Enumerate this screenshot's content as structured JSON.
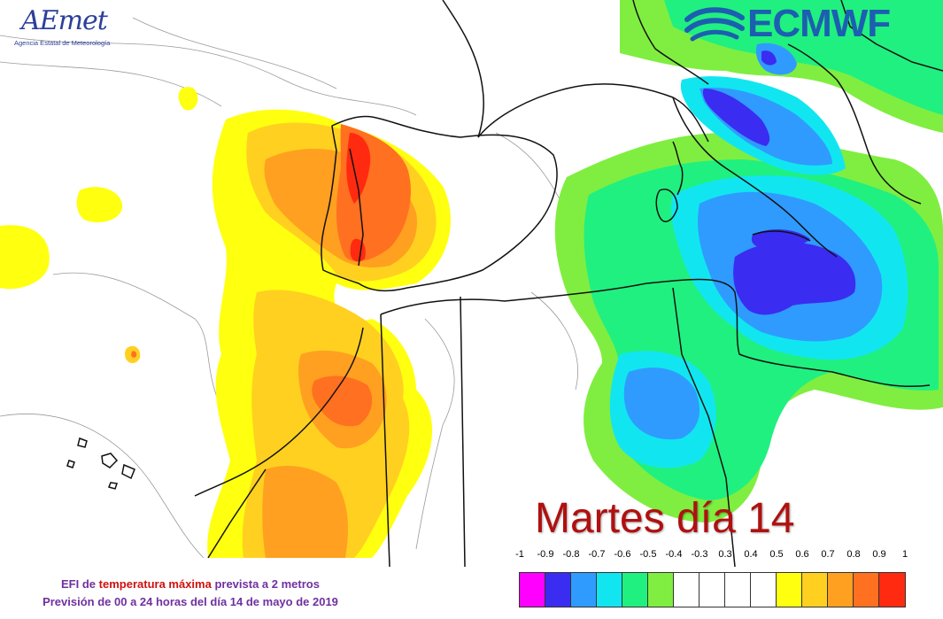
{
  "header": {
    "aemet_logo_text": "AEmet",
    "aemet_subtitle": "Agencia Estatal de Meteorología",
    "ecmwf_logo_text": "ECMWF"
  },
  "title": "Martes día 14",
  "caption": {
    "line1_prefix": "EFI de",
    "line1_highlight": "temperatura máxima",
    "line1_suffix": "prevista a 2 metros",
    "line2": "Previsión de 00 a 24 horas del día 14 de mayo de 2019"
  },
  "legend": {
    "labels": [
      "-1",
      "-0.9",
      "-0.8",
      "-0.7",
      "-0.6",
      "-0.5",
      "-0.4",
      "-0.3",
      "0.3",
      "0.4",
      "0.5",
      "0.6",
      "0.7",
      "0.8",
      "0.9",
      "1"
    ],
    "swatches": [
      {
        "from": "-1",
        "to": "-0.9",
        "color": "#ff00ff"
      },
      {
        "from": "-0.9",
        "to": "-0.8",
        "color": "#3a2cf0"
      },
      {
        "from": "-0.8",
        "to": "-0.7",
        "color": "#2f9bff"
      },
      {
        "from": "-0.7",
        "to": "-0.6",
        "color": "#11e6f0"
      },
      {
        "from": "-0.6",
        "to": "-0.5",
        "color": "#20f080"
      },
      {
        "from": "-0.5",
        "to": "-0.4",
        "color": "#80ee40"
      },
      {
        "from": "-0.4",
        "to": "-0.3",
        "color": "#ffffff"
      },
      {
        "from": "-0.3",
        "to": "0.3",
        "color": "#ffffff"
      },
      {
        "from": "0.3",
        "to": "0.4",
        "color": "#ffffff"
      },
      {
        "from": "0.4",
        "to": "0.5",
        "color": "#ffffff"
      },
      {
        "from": "0.5",
        "to": "0.6",
        "color": "#ffff10"
      },
      {
        "from": "0.6",
        "to": "0.7",
        "color": "#ffd020"
      },
      {
        "from": "0.7",
        "to": "0.8",
        "color": "#ffa020"
      },
      {
        "from": "0.8",
        "to": "0.9",
        "color": "#ff7020"
      },
      {
        "from": "0.9",
        "to": "1",
        "color": "#ff2a10"
      }
    ]
  },
  "colors": {
    "title": "#b01010",
    "caption": "#7030a0",
    "caption_highlight": "#d01010",
    "ecmwf_blue": "#1c5fb0",
    "aemet_blue": "#2c3f9a"
  }
}
